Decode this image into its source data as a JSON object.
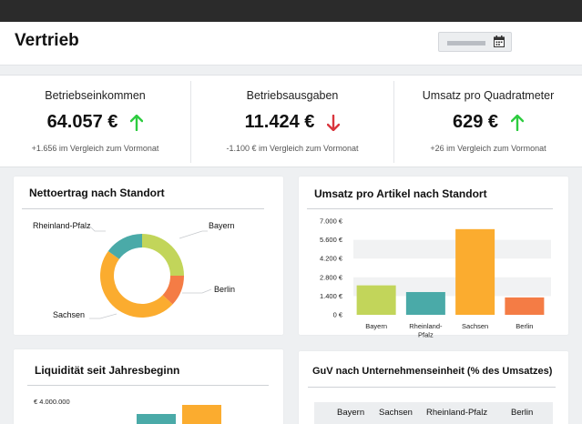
{
  "app": {
    "title": "Vertrieb"
  },
  "kpis": [
    {
      "title": "Betriebseinkommen",
      "value": "64.057 €",
      "trend": "up",
      "comparison": "+1.656 im Vergleich zum Vormonat"
    },
    {
      "title": "Betriebsausgaben",
      "value": "11.424 €",
      "trend": "down",
      "comparison": "-1.100 € im Vergleich zum Vormonat"
    },
    {
      "title": "Umsatz pro Quadratmeter",
      "value": "629 €",
      "trend": "up",
      "comparison": "+26 im Vergleich zum Vormonat"
    }
  ],
  "colors": {
    "up": "#2ecc40",
    "down": "#d9363e"
  },
  "cards": {
    "nettoertrag": {
      "title": "Nettoertrag nach Standort"
    },
    "umsatz": {
      "title": "Umsatz pro Artikel nach Standort"
    },
    "liquiditaet": {
      "title": "Liquidität seit Jahresbeginn",
      "ytick": "€ 4.000.000"
    },
    "guv": {
      "title": "GuV nach Unternehmenseinheit (% des Umsatzes)",
      "columns": [
        "Bayern",
        "Sachsen",
        "Rheinland-Pfalz",
        "Berlin"
      ]
    }
  },
  "chart_data": [
    {
      "type": "pie",
      "title": "Nettoertrag nach Standort",
      "labels": [
        "Bayern",
        "Berlin",
        "Sachsen",
        "Rheinland-Pfalz"
      ],
      "values": [
        25,
        12,
        48,
        15
      ],
      "colors": [
        "#c2d55a",
        "#f47c45",
        "#fbac2f",
        "#4aaaa8"
      ]
    },
    {
      "type": "bar",
      "title": "Umsatz pro Artikel nach Standort",
      "categories": [
        "Bayern",
        "Rheinland-Pfalz",
        "Sachsen",
        "Berlin"
      ],
      "category_lines": [
        [
          "Bayern"
        ],
        [
          "Rheinland-",
          "Pfalz"
        ],
        [
          "Sachsen"
        ],
        [
          "Berlin"
        ]
      ],
      "values": [
        2200,
        1700,
        6400,
        1300
      ],
      "colors": [
        "#c2d55a",
        "#4aaaa8",
        "#fbac2f",
        "#f47c45"
      ],
      "yticks": [
        0,
        1400,
        2800,
        4200,
        5600,
        7000
      ],
      "ytick_labels": [
        "0 €",
        "1.400 €",
        "2.800 €",
        "4.200 €",
        "5.600 €",
        "7.000 €"
      ],
      "ylim": [
        0,
        7000
      ]
    }
  ]
}
